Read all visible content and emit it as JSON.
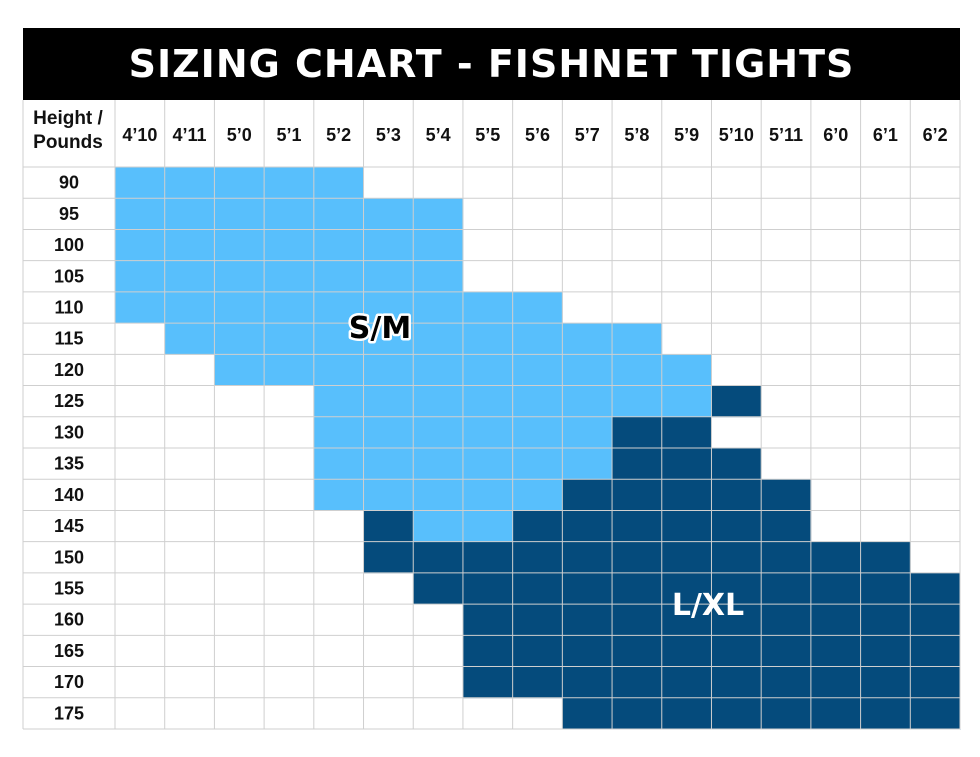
{
  "title": "SIZING CHART - FISHNET TIGHTS",
  "corner_label": [
    "Height /",
    "Pounds"
  ],
  "colors": {
    "sm": "#58BFFC",
    "lxl": "#054B7C",
    "grid": "#cfcfcf",
    "title_bg": "#000000"
  },
  "chart_data": {
    "type": "heatmap",
    "title": "SIZING CHART - FISHNET TIGHTS",
    "xlabel": "Height",
    "ylabel": "Pounds",
    "x": [
      "4’10",
      "4’11",
      "5’0",
      "5’1",
      "5’2",
      "5’3",
      "5’4",
      "5’5",
      "5’6",
      "5’7",
      "5’8",
      "5’9",
      "5’10",
      "5’11",
      "6’0",
      "6’1",
      "6’2"
    ],
    "y": [
      "90",
      "95",
      "100",
      "105",
      "110",
      "115",
      "120",
      "125",
      "130",
      "135",
      "140",
      "145",
      "150",
      "155",
      "160",
      "165",
      "170",
      "175"
    ],
    "legend": {
      "S": "S/M",
      "L": "L/XL"
    },
    "cells": [
      "SSSSS............",
      "SSSSSSS..........",
      "SSSSSSS..........",
      "SSSSSSS..........",
      "SSSSSSSSS........",
      ".SSSSSSSSSS......",
      "..SSSSSSSSSS.....",
      "....SSSSSSSSL....",
      "....SSSSSSLL.....",
      "....SSSSSSLLL....",
      "....SSSSSLLLLL...",
      ".....LSSLLLLLL...",
      ".....LLLLLLLLLLL.",
      "......LLLLLLLLLLL",
      ".......LLLLLLLLLL",
      ".......LLLLLLLLLL",
      ".......LLLLLLLLLL",
      ".........LLLLLLLL"
    ]
  }
}
